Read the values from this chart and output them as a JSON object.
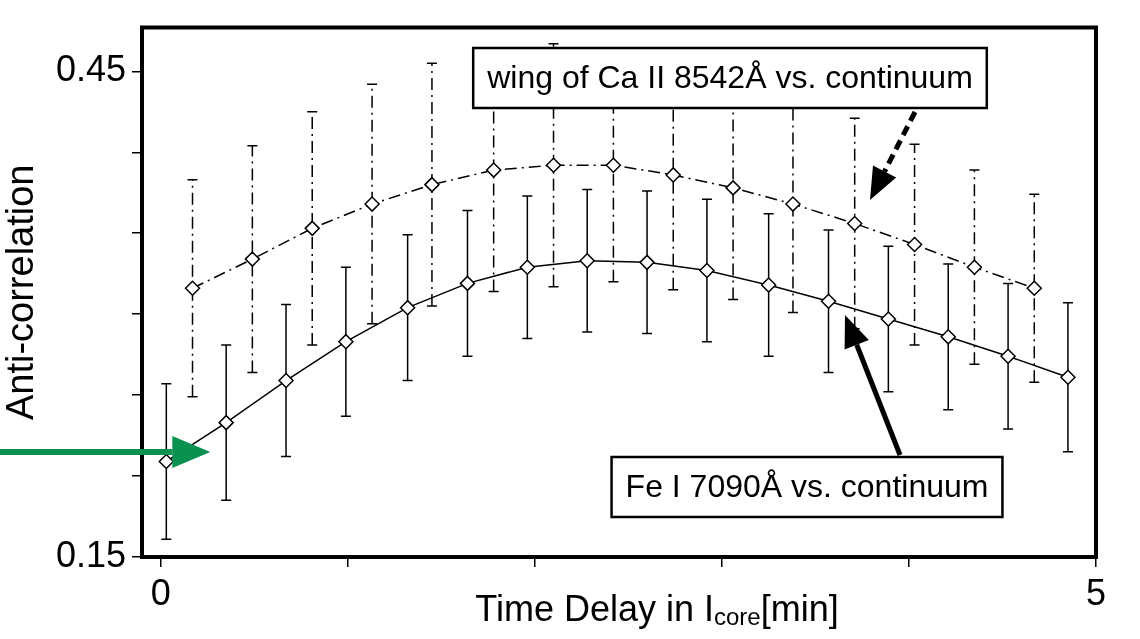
{
  "chart_data": {
    "type": "line",
    "xlabel": "Time Delay in I$_{core}$[min]",
    "ylabel": "Anti-correlation",
    "xlim": [
      -0.1,
      5
    ],
    "xticks": [
      0,
      {
        "value": 1,
        "label": null
      },
      {
        "value": 2,
        "label": null
      },
      {
        "value": 3,
        "label": null
      },
      {
        "value": 4,
        "label": null
      },
      5
    ],
    "ylim": [
      0.15,
      0.477
    ],
    "yticks": [
      0.15,
      {
        "value": 0.2,
        "label": null
      },
      {
        "value": 0.25,
        "label": null
      },
      {
        "value": 0.3,
        "label": null
      },
      {
        "value": 0.35,
        "label": null
      },
      {
        "value": 0.4,
        "label": null
      },
      0.45
    ],
    "grid": false,
    "legend": false,
    "marker": "diamond",
    "series": [
      {
        "color": "#000000",
        "line_style": "solid",
        "x": [
          0.03,
          0.35,
          0.67,
          0.99,
          1.32,
          1.64,
          1.96,
          2.28,
          2.6,
          2.92,
          3.25,
          3.57,
          3.89,
          4.21,
          4.53,
          4.85
        ],
        "values": [
          0.209,
          0.233,
          0.259,
          0.283,
          0.304,
          0.319,
          0.329,
          0.333,
          0.332,
          0.327,
          0.318,
          0.308,
          0.297,
          0.286,
          0.274,
          0.261
        ],
        "errors": [
          0.048,
          0.048,
          0.047,
          0.046,
          0.045,
          0.045,
          0.044,
          0.044,
          0.044,
          0.044,
          0.044,
          0.044,
          0.045,
          0.045,
          0.045,
          0.046
        ]
      },
      {
        "color": "#000000",
        "line_style": "dashed",
        "x": [
          0.17,
          0.49,
          0.81,
          1.13,
          1.45,
          1.78,
          2.1,
          2.42,
          2.74,
          3.06,
          3.38,
          3.71,
          4.03,
          4.35,
          4.67
        ],
        "values": [
          0.316,
          0.334,
          0.353,
          0.368,
          0.38,
          0.389,
          0.392,
          0.392,
          0.386,
          0.378,
          0.368,
          0.356,
          0.343,
          0.329,
          0.316
        ],
        "errors": [
          0.067,
          0.07,
          0.072,
          0.074,
          0.075,
          0.075,
          0.075,
          0.072,
          0.071,
          0.069,
          0.067,
          0.065,
          0.062,
          0.06,
          0.058
        ]
      }
    ],
    "annotations": [
      "wing of Ca II 8542Å vs. continuum",
      "Fe I 7090Å vs. continuum"
    ]
  }
}
